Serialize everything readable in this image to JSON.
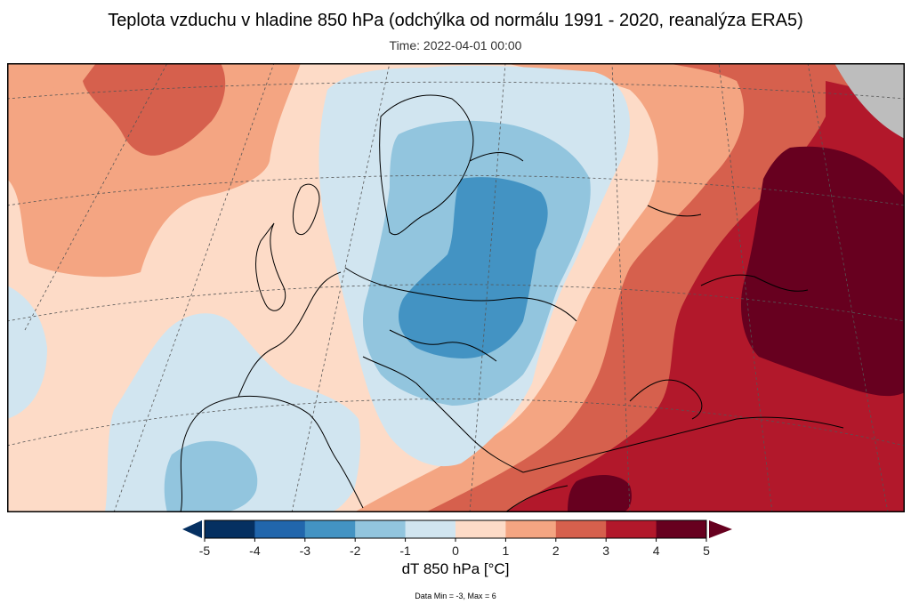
{
  "title": "Teplota vzduchu v hladine 850 hPa (odchýlka od normálu 1991 - 2020, reanalýza ERA5)",
  "subtitle": "Time: 2022-04-01 00:00",
  "colorbar": {
    "label": "dT 850 hPa [°C]",
    "ticks": [
      "-5",
      "-4",
      "-3",
      "-2",
      "-1",
      "0",
      "1",
      "2",
      "3",
      "4",
      "5"
    ],
    "colors": [
      "#053061",
      "#2166ac",
      "#4393c3",
      "#92c5de",
      "#d1e5f0",
      "#fddbc7",
      "#f4a582",
      "#d6604d",
      "#b2182b",
      "#67001f"
    ],
    "under_color": "#053061",
    "over_color": "#67001f"
  },
  "stats": "Data Min = -3, Max = 6",
  "map": {
    "nodata_color": "#bdbdbd",
    "coastline_color": "#000000",
    "grid_color": "#555555"
  }
}
